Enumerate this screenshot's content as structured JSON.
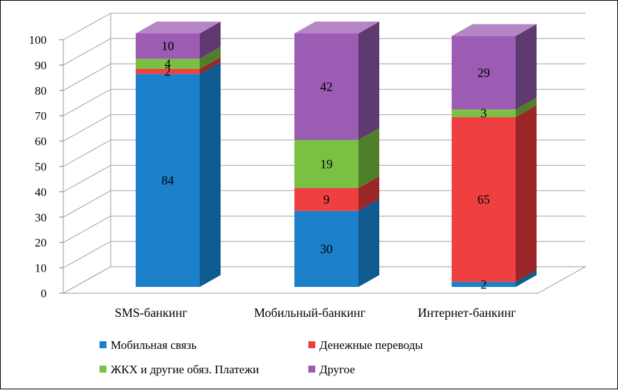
{
  "chart_data": {
    "type": "bar",
    "stacked": true,
    "three_d": true,
    "categories": [
      "SMS-банкинг",
      "Мобильный-банкинг",
      "Интернет-банкинг"
    ],
    "series": [
      {
        "name": "Мобильная связь",
        "values": [
          84,
          30,
          2
        ],
        "color": "#1b7fc9",
        "side": "#0f5a8f",
        "top": "#3d99d8"
      },
      {
        "name": "Денежные переводы",
        "values": [
          2,
          9,
          65
        ],
        "color": "#ee4040",
        "side": "#9a2727",
        "top": "#f26a6a"
      },
      {
        "name": "ЖКХ и другие обяз. Платежи",
        "values": [
          4,
          19,
          3
        ],
        "color": "#7ac143",
        "side": "#4f7f2b",
        "top": "#98d06a"
      },
      {
        "name": "Другое",
        "values": [
          10,
          42,
          29
        ],
        "color": "#9c5cb3",
        "side": "#5f3a70",
        "top": "#b585c6"
      }
    ],
    "ylim": [
      0,
      100
    ],
    "yticks": [
      "0",
      "10",
      "20",
      "30",
      "40",
      "50",
      "60",
      "70",
      "80",
      "90",
      "100"
    ],
    "grid": true,
    "legend_position": "bottom"
  }
}
